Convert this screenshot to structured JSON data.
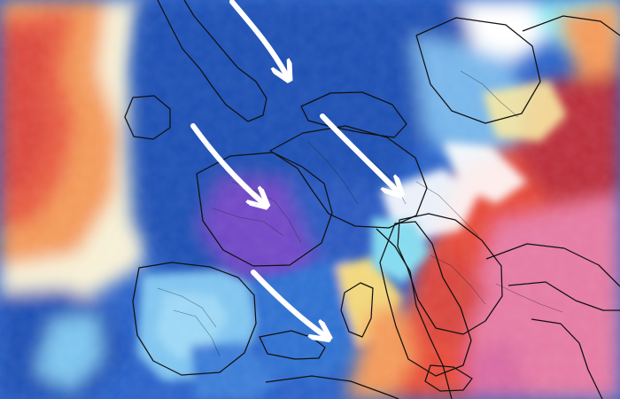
{
  "map": {
    "kind": "temperature-anomaly-forecast",
    "region": "Europe",
    "legend": null,
    "visible_text": [],
    "palette": {
      "deep_blue": "#1f4fb3",
      "blue": "#2f6fd0",
      "light_blue": "#86c6f0",
      "cyan": "#8ee8f4",
      "white": "#f4fbff",
      "pale_yellow": "#f8e7a0",
      "orange": "#f39a5a",
      "red": "#e64b3b",
      "dark_red": "#b92d3b",
      "pink": "#e57aa3",
      "purple": "#6f46c6",
      "border_line": "#111111",
      "arrow": "#ffffff"
    },
    "arrows": [
      {
        "name": "flow-arrow-north-sea",
        "direction": "southeast"
      },
      {
        "name": "flow-arrow-france",
        "direction": "southeast"
      },
      {
        "name": "flow-arrow-germany-alps",
        "direction": "southeast"
      },
      {
        "name": "flow-arrow-mediterranean",
        "direction": "southeast"
      }
    ]
  }
}
